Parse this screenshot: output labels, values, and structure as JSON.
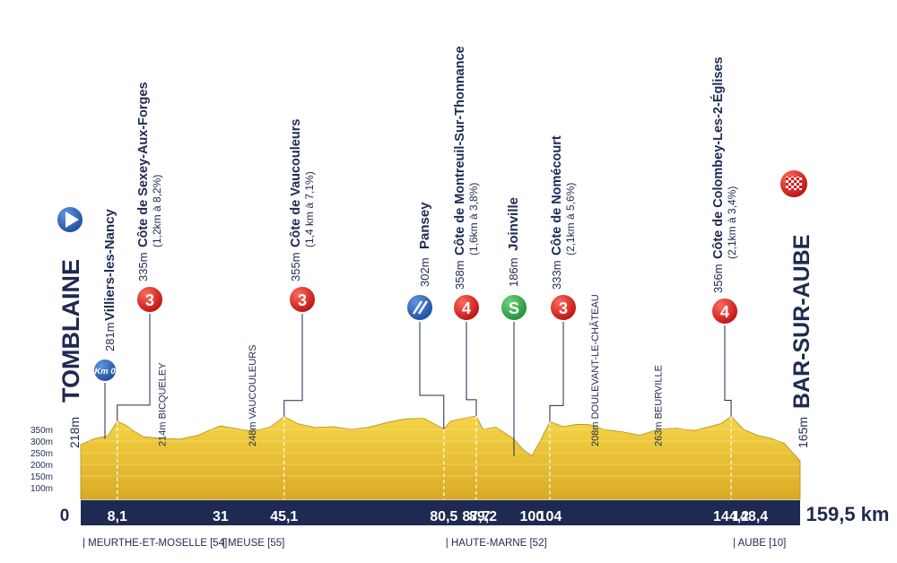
{
  "chart_data": {
    "type": "area",
    "title": "",
    "xlabel": "",
    "ylabel": "",
    "x_unit": "km",
    "ylim": [
      0,
      380
    ],
    "y_ticks": [
      "350m",
      "300m",
      "250m",
      "200m",
      "150m",
      "100m"
    ],
    "y_tick_values": [
      350,
      300,
      250,
      200,
      150,
      100
    ],
    "distance_total": "159,5 km",
    "distance_total_value": 159.5,
    "start_km_label": "0",
    "km_axis_labels": [
      "8,1",
      "31",
      "45,1",
      "80,5",
      "87,7",
      "89,2",
      "100",
      "104",
      "144,2",
      "148,4"
    ],
    "km_axis_values": [
      8.1,
      31,
      45.1,
      80.5,
      87.7,
      89.2,
      100,
      104,
      144.2,
      148.4
    ],
    "profile": [
      {
        "km": 0,
        "alt": 235
      },
      {
        "km": 3,
        "alt": 260
      },
      {
        "km": 6,
        "alt": 272
      },
      {
        "km": 8.1,
        "alt": 335
      },
      {
        "km": 10,
        "alt": 318
      },
      {
        "km": 12,
        "alt": 290
      },
      {
        "km": 14,
        "alt": 268
      },
      {
        "km": 18,
        "alt": 262
      },
      {
        "km": 22,
        "alt": 258
      },
      {
        "km": 26,
        "alt": 275
      },
      {
        "km": 29,
        "alt": 300
      },
      {
        "km": 31,
        "alt": 315
      },
      {
        "km": 34,
        "alt": 305
      },
      {
        "km": 37,
        "alt": 295
      },
      {
        "km": 40,
        "alt": 300
      },
      {
        "km": 42,
        "alt": 310
      },
      {
        "km": 45.1,
        "alt": 355
      },
      {
        "km": 48,
        "alt": 325
      },
      {
        "km": 52,
        "alt": 308
      },
      {
        "km": 56,
        "alt": 312
      },
      {
        "km": 60,
        "alt": 300
      },
      {
        "km": 64,
        "alt": 310
      },
      {
        "km": 68,
        "alt": 330
      },
      {
        "km": 72,
        "alt": 345
      },
      {
        "km": 76,
        "alt": 348
      },
      {
        "km": 80.5,
        "alt": 302
      },
      {
        "km": 82,
        "alt": 335
      },
      {
        "km": 85,
        "alt": 348
      },
      {
        "km": 87.7,
        "alt": 358
      },
      {
        "km": 89.2,
        "alt": 300
      },
      {
        "km": 92,
        "alt": 310
      },
      {
        "km": 96,
        "alt": 260
      },
      {
        "km": 98,
        "alt": 215
      },
      {
        "km": 100,
        "alt": 186
      },
      {
        "km": 102,
        "alt": 255
      },
      {
        "km": 104,
        "alt": 333
      },
      {
        "km": 107,
        "alt": 312
      },
      {
        "km": 110,
        "alt": 322
      },
      {
        "km": 113,
        "alt": 320
      },
      {
        "km": 116,
        "alt": 300
      },
      {
        "km": 120,
        "alt": 290
      },
      {
        "km": 124,
        "alt": 275
      },
      {
        "km": 128,
        "alt": 300
      },
      {
        "km": 132,
        "alt": 305
      },
      {
        "km": 136,
        "alt": 295
      },
      {
        "km": 139,
        "alt": 310
      },
      {
        "km": 142,
        "alt": 325
      },
      {
        "km": 144.2,
        "alt": 356
      },
      {
        "km": 147,
        "alt": 300
      },
      {
        "km": 150,
        "alt": 275
      },
      {
        "km": 153,
        "alt": 262
      },
      {
        "km": 156,
        "alt": 240
      },
      {
        "km": 159.5,
        "alt": 165
      }
    ],
    "start": {
      "name": "TOMBLAINE",
      "altitude": "218m"
    },
    "finish": {
      "name": "BAR-SUR-AUBE",
      "altitude": "165m"
    },
    "climbs": [
      {
        "km": 8.1,
        "category": "3",
        "altitude": "335m",
        "name": "Côte de Sexey-Aux-Forges",
        "detail": "(1,2km à 8,2%)",
        "color": "#e02020"
      },
      {
        "km": 45.1,
        "category": "3",
        "altitude": "355m",
        "name": "Côte de Vaucouleurs",
        "detail": "(1,4 km à 7,1%)",
        "color": "#e02020"
      },
      {
        "km": 87.7,
        "category": "4",
        "altitude": "358m",
        "name": "Côte de Montreuil-Sur-Thonnance",
        "detail": "(1,6km à 3,8%)",
        "color": "#e02020"
      },
      {
        "km": 104,
        "category": "3",
        "altitude": "333m",
        "name": "Côte de Nomécourt",
        "detail": "(2,1km à 5,6%)",
        "color": "#e02020"
      },
      {
        "km": 144.2,
        "category": "4",
        "altitude": "356m",
        "name": "Côte de Colombey-Les-2-Églises",
        "detail": "(2,1km à 3,4%)",
        "color": "#e02020"
      }
    ],
    "km0": {
      "km": 0,
      "label": "Km 0",
      "altitude": "281m",
      "name": "Villiers-les-Nancy"
    },
    "feed_zone": {
      "km": 80.5,
      "altitude": "302m",
      "name": "Pansey"
    },
    "sprint": {
      "km": 100,
      "label": "S",
      "altitude": "186m",
      "name": "Joinville"
    },
    "towns": [
      {
        "km": 18,
        "text": "214m BICQUELEY"
      },
      {
        "km": 38,
        "text": "248m VAUCOULEURS"
      },
      {
        "km": 114,
        "text": "208m DOULEVANT-LE-CHÂTEAU"
      },
      {
        "km": 128,
        "text": "263m BEURVILLE"
      }
    ],
    "departments": [
      {
        "km": 0,
        "text": "| MEURTHE-ET-MOSELLE [54]"
      },
      {
        "km": 31,
        "text": "| MEUSE [55]"
      },
      {
        "km": 80.5,
        "text": "| HAUTE-MARNE [52]"
      },
      {
        "km": 144.2,
        "text": "| AUBE [10]"
      }
    ],
    "colors": {
      "terrain": "#f2cf3c",
      "terrain_dark": "#c99a1d",
      "axis_band": "#1f2a52",
      "climb": "#e02020",
      "sprint": "#2ea84a",
      "start": "#2763b8"
    }
  }
}
